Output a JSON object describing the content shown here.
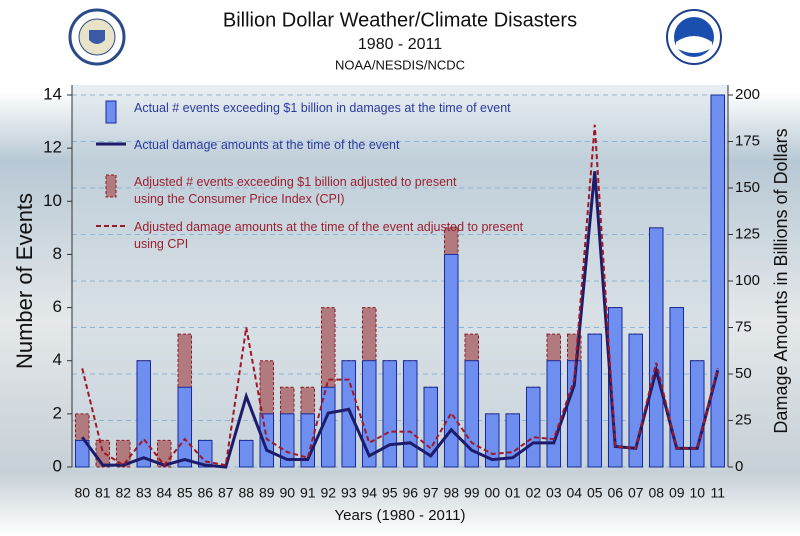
{
  "chart_data": {
    "type": "bar",
    "title": "Billion Dollar Weather/Climate Disasters",
    "subtitle": "1980 - 2011",
    "source": "NOAA/NESDIS/NCDC",
    "x_label": "Years (1980 - 2011)",
    "y_label": "Number of Events",
    "y2_label": "Damage Amounts in Billions of Dollars",
    "categories": [
      "80",
      "81",
      "82",
      "83",
      "84",
      "85",
      "86",
      "87",
      "88",
      "89",
      "90",
      "91",
      "92",
      "93",
      "94",
      "95",
      "96",
      "97",
      "98",
      "99",
      "00",
      "01",
      "02",
      "03",
      "04",
      "05",
      "06",
      "07",
      "08",
      "09",
      "10",
      "11"
    ],
    "ylim": [
      0,
      14
    ],
    "yticks": [
      0,
      2,
      4,
      6,
      8,
      10,
      12,
      14
    ],
    "y2lim": [
      0,
      200
    ],
    "y2ticks": [
      0,
      25,
      50,
      75,
      100,
      125,
      150,
      175,
      200
    ],
    "grid": true,
    "series": [
      {
        "name": "Actual # events exceeding $1 billion in damages at the time of event",
        "kind": "bar",
        "color": "#6e8ff0",
        "stroke": "#1a2a9a",
        "text_color": "#2b3b9e",
        "dashed": false,
        "values": [
          1,
          0,
          0,
          4,
          0,
          3,
          1,
          0,
          1,
          2,
          2,
          2,
          3,
          4,
          4,
          4,
          4,
          3,
          8,
          4,
          2,
          2,
          3,
          4,
          4,
          5,
          6,
          5,
          9,
          6,
          4,
          14
        ]
      },
      {
        "name": "Actual damage amounts at the time of the event",
        "kind": "line",
        "axis": "y2",
        "color": "#1c1c6a",
        "text_color": "#2b3b9e",
        "dashed": false,
        "values": [
          16,
          1,
          1,
          5,
          1,
          4,
          1,
          0,
          38,
          9,
          4,
          4,
          29,
          31,
          6,
          12,
          13,
          6,
          20,
          9,
          4,
          5,
          13,
          13,
          44,
          159,
          11,
          10,
          52,
          10,
          10,
          52
        ]
      },
      {
        "name": "Adjusted # events exceeding $1 billion adjusted to present using the Consumer Price Index (CPI)",
        "kind": "bar",
        "color": "#b07a7e",
        "stroke": "#8a1a24",
        "text_color": "#9a2030",
        "dashed": true,
        "values": [
          2,
          1,
          1,
          4,
          1,
          5,
          1,
          0,
          1,
          4,
          3,
          3,
          6,
          4,
          6,
          4,
          4,
          3,
          9,
          5,
          2,
          2,
          3,
          5,
          5,
          5,
          6,
          5,
          9,
          6,
          4,
          14
        ]
      },
      {
        "name": "Adjusted damage amounts at the time of the event adjusted to present using CPI",
        "kind": "line",
        "axis": "y2",
        "color": "#a01828",
        "text_color": "#9a2030",
        "dashed": true,
        "values": [
          53,
          8,
          1,
          15,
          1,
          15,
          3,
          1,
          75,
          15,
          8,
          5,
          47,
          47,
          13,
          19,
          19,
          10,
          29,
          13,
          7,
          8,
          16,
          15,
          47,
          184,
          11,
          10,
          56,
          10,
          10,
          53
        ]
      }
    ]
  }
}
